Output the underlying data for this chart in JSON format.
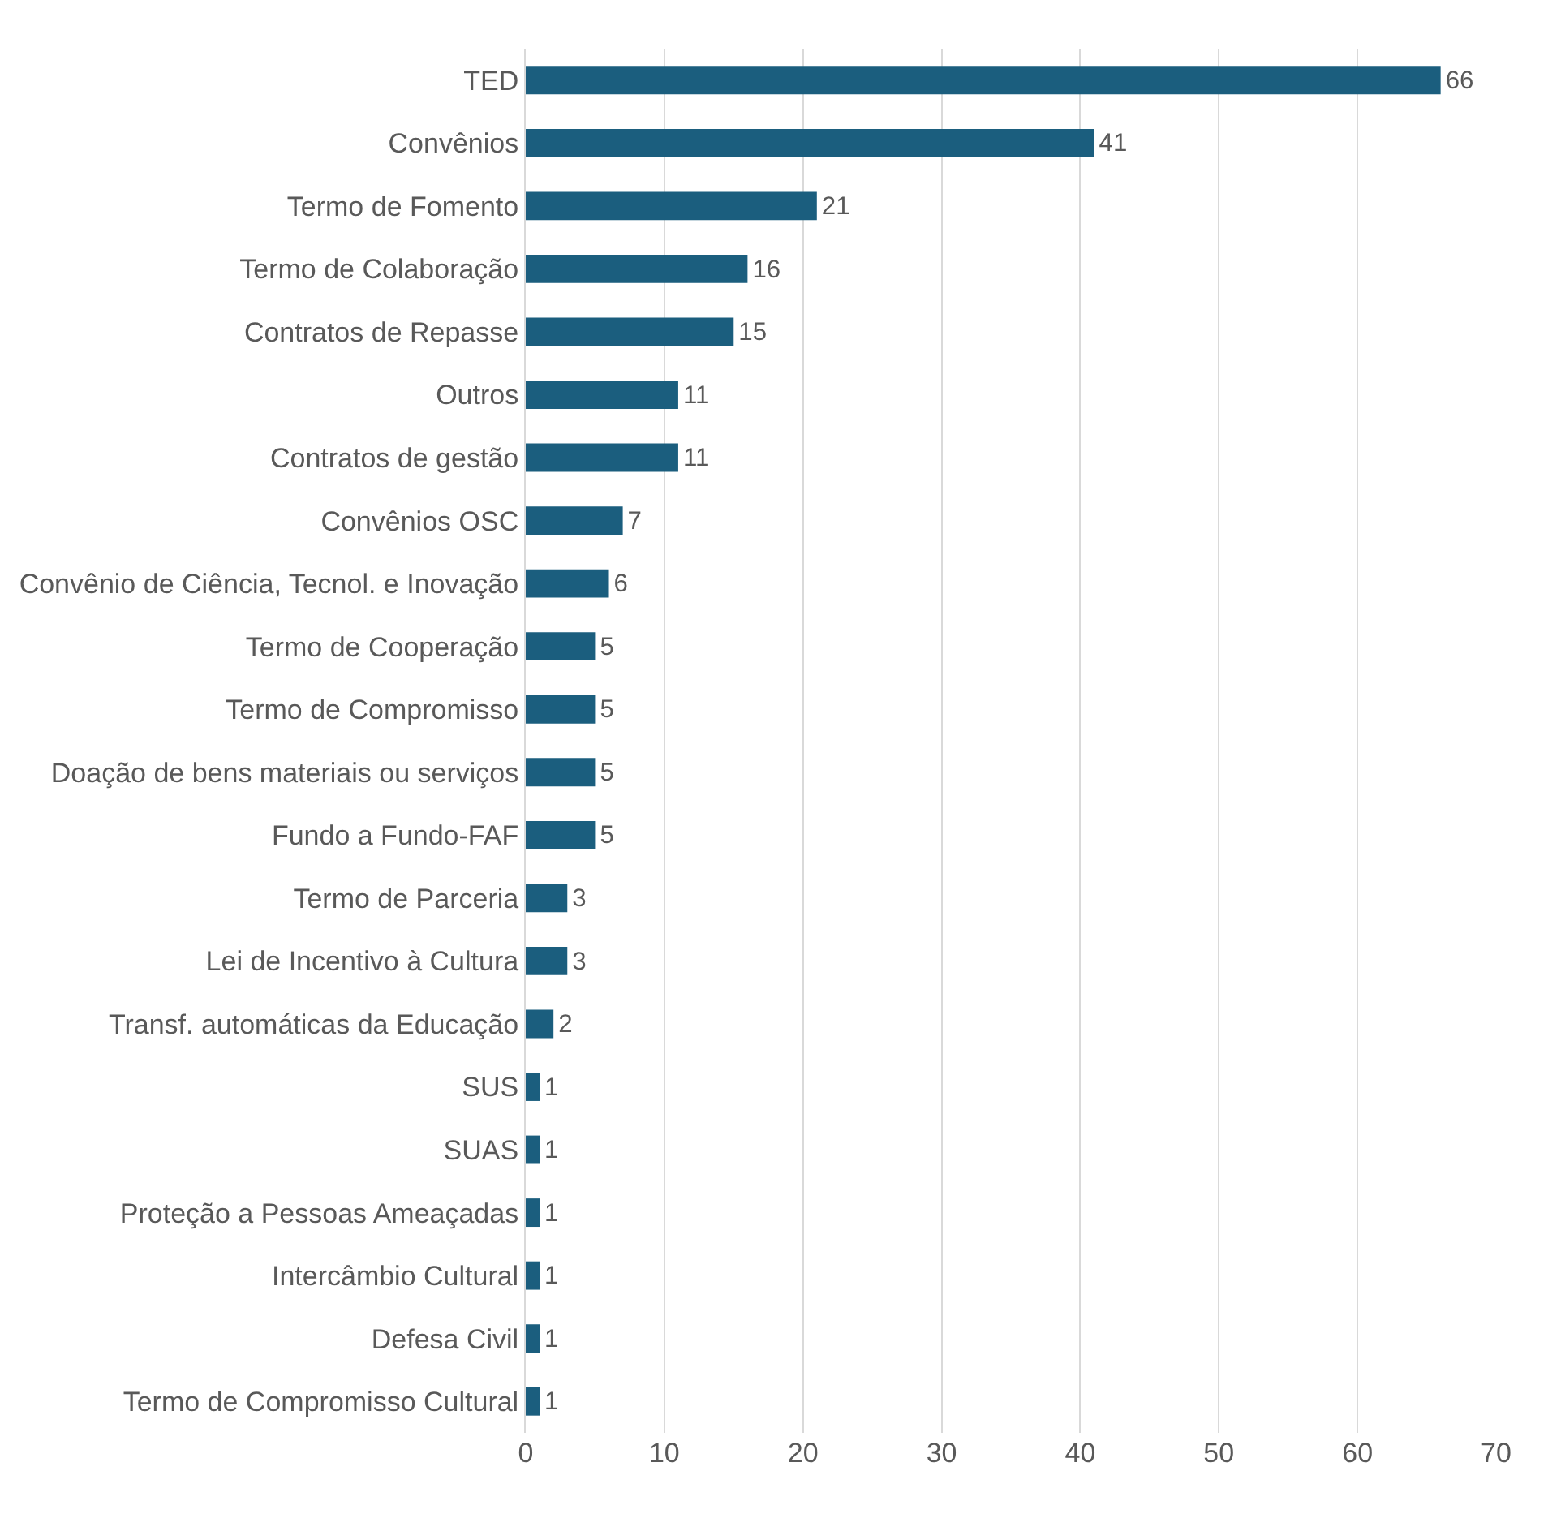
{
  "chart_data": {
    "type": "bar",
    "orientation": "horizontal",
    "categories": [
      "TED",
      "Convênios",
      "Termo de Fomento",
      "Termo de Colaboração",
      "Contratos de Repasse",
      "Outros",
      "Contratos de gestão",
      "Convênios OSC",
      "Convênio de Ciência, Tecnol. e Inovação",
      "Termo de Cooperação",
      "Termo de Compromisso",
      "Doação de bens materiais ou serviços",
      "Fundo a Fundo-FAF",
      "Termo de Parceria",
      "Lei de Incentivo à Cultura",
      "Transf. automáticas da Educação",
      "SUS",
      "SUAS",
      "Proteção a Pessoas Ameaçadas",
      "Intercâmbio Cultural",
      "Defesa Civil",
      "Termo de Compromisso Cultural"
    ],
    "values": [
      66,
      41,
      21,
      16,
      15,
      11,
      11,
      7,
      6,
      5,
      5,
      5,
      5,
      3,
      3,
      2,
      1,
      1,
      1,
      1,
      1,
      1
    ],
    "color": "#1b5e7e",
    "xlim": [
      0,
      70
    ],
    "xticks": [
      0,
      10,
      20,
      30,
      40,
      50,
      60,
      70
    ],
    "grid": "x",
    "data_labels": true
  }
}
